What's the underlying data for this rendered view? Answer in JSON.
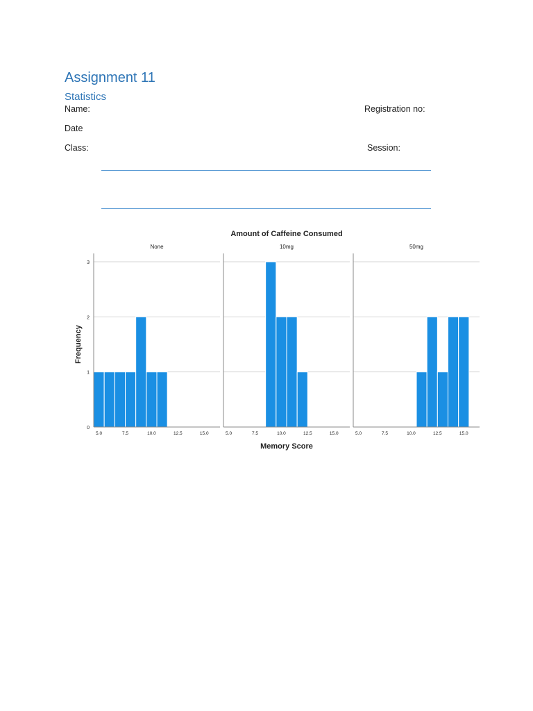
{
  "document": {
    "title": "Assignment 11",
    "subtitle": "Statistics",
    "fields": {
      "name_label": "Name:",
      "registration_label": "Registration no:",
      "date_label": "Date",
      "class_label": "Class:",
      "session_label": "Session:"
    }
  },
  "colors": {
    "heading": "#2e75b6",
    "bar": "#1a8fe3",
    "rule": "#5b9bd5"
  },
  "chart_data": {
    "type": "bar",
    "title": "Amount of Caffeine Consumed",
    "xlabel": "Memory Score",
    "ylabel": "Frequency",
    "ylim": [
      0,
      3
    ],
    "y_ticks": [
      "0",
      "1",
      "2",
      "3"
    ],
    "x_ticks": [
      {
        "value": 5.0,
        "label": "5.0"
      },
      {
        "value": 7.5,
        "label": "7.5"
      },
      {
        "value": 10.0,
        "label": "10.0"
      },
      {
        "value": 12.5,
        "label": "12.5"
      },
      {
        "value": 15.0,
        "label": "15.0"
      }
    ],
    "xlim": [
      4.5,
      16.5
    ],
    "bin_width": 1,
    "grid": true,
    "panels": [
      {
        "name": "None",
        "bins": [
          {
            "x": 5,
            "count": 1
          },
          {
            "x": 6,
            "count": 1
          },
          {
            "x": 7,
            "count": 1
          },
          {
            "x": 8,
            "count": 1
          },
          {
            "x": 9,
            "count": 2
          },
          {
            "x": 10,
            "count": 1
          },
          {
            "x": 11,
            "count": 1
          }
        ]
      },
      {
        "name": "10mg",
        "bins": [
          {
            "x": 9,
            "count": 3
          },
          {
            "x": 10,
            "count": 2
          },
          {
            "x": 11,
            "count": 2
          },
          {
            "x": 12,
            "count": 1
          }
        ]
      },
      {
        "name": "50mg",
        "bins": [
          {
            "x": 11,
            "count": 1
          },
          {
            "x": 12,
            "count": 2
          },
          {
            "x": 13,
            "count": 1
          },
          {
            "x": 14,
            "count": 2
          },
          {
            "x": 15,
            "count": 2
          }
        ]
      }
    ]
  }
}
